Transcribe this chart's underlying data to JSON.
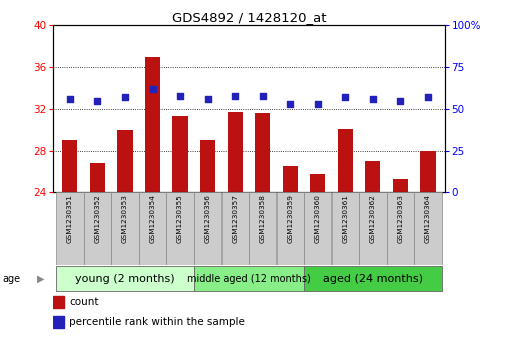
{
  "title": "GDS4892 / 1428120_at",
  "samples": [
    "GSM1230351",
    "GSM1230352",
    "GSM1230353",
    "GSM1230354",
    "GSM1230355",
    "GSM1230356",
    "GSM1230357",
    "GSM1230358",
    "GSM1230359",
    "GSM1230360",
    "GSM1230361",
    "GSM1230362",
    "GSM1230363",
    "GSM1230364"
  ],
  "counts": [
    29.0,
    26.8,
    30.0,
    37.0,
    31.3,
    29.0,
    31.7,
    31.6,
    26.5,
    25.8,
    30.1,
    27.0,
    25.3,
    28.0
  ],
  "percentile": [
    56,
    55,
    57,
    62,
    58,
    56,
    58,
    58,
    53,
    53,
    57,
    56,
    55,
    57
  ],
  "ylim_left": [
    24,
    40
  ],
  "ylim_right": [
    0,
    100
  ],
  "yticks_left": [
    24,
    28,
    32,
    36,
    40
  ],
  "yticks_right": [
    0,
    25,
    50,
    75,
    100
  ],
  "bar_color": "#bb1111",
  "dot_color": "#2222bb",
  "groups": [
    {
      "label": "young (2 months)",
      "start": 0,
      "end": 5,
      "color": "#ccffcc"
    },
    {
      "label": "middle aged (12 months)",
      "start": 5,
      "end": 9,
      "color": "#88ee88"
    },
    {
      "label": "aged (24 months)",
      "start": 9,
      "end": 14,
      "color": "#44cc44"
    }
  ],
  "legend_count": "count",
  "legend_percentile": "percentile rank within the sample",
  "bar_width": 0.55,
  "sample_bg": "#cccccc"
}
